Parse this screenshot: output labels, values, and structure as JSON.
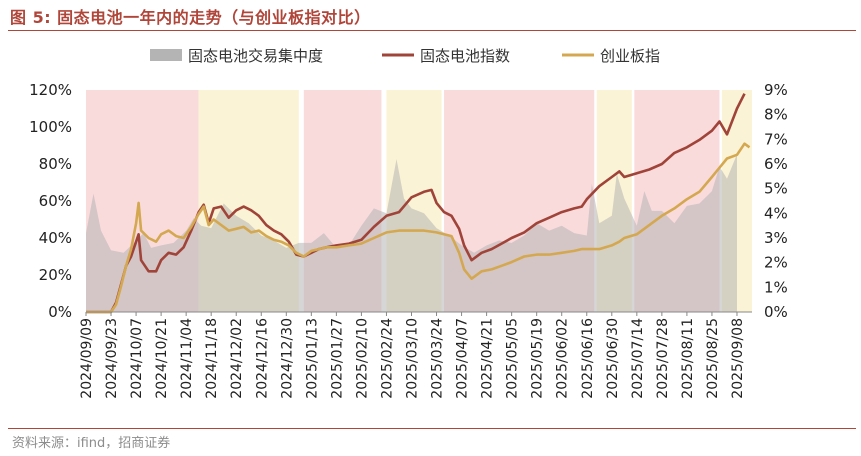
{
  "header": {
    "title": "图 5:  固态电池一年内的走势（与创业板指对比）"
  },
  "footer": {
    "source": "资料来源：ifind，招商证券"
  },
  "chart_data": {
    "type": "line",
    "title": "图 5:  固态电池一年内的走势（与创业板指对比）",
    "xlabel": "",
    "ylabel": "",
    "legend_placement": "top-center",
    "grid": false,
    "categories": [
      "2024/09/09",
      "2024/09/23",
      "2024/10/07",
      "2024/10/21",
      "2024/11/04",
      "2024/11/18",
      "2024/12/02",
      "2024/12/16",
      "2024/12/30",
      "2025/01/13",
      "2025/01/27",
      "2025/02/10",
      "2025/02/24",
      "2025/03/10",
      "2025/03/24",
      "2025/04/07",
      "2025/04/21",
      "2025/05/05",
      "2025/05/19",
      "2025/06/02",
      "2025/06/16",
      "2025/06/30",
      "2025/07/14",
      "2025/07/28",
      "2025/08/11",
      "2025/08/25",
      "2025/09/08"
    ],
    "left_axis": {
      "ylim": [
        0,
        120
      ],
      "ticks": [
        "0%",
        "20%",
        "40%",
        "60%",
        "80%",
        "100%",
        "120%"
      ]
    },
    "right_axis": {
      "ylim": [
        0,
        9
      ],
      "ticks": [
        "0%",
        "1%",
        "2%",
        "3%",
        "4%",
        "5%",
        "6%",
        "7%",
        "8%",
        "9%"
      ]
    },
    "series": [
      {
        "name": "固态电池交易集中度",
        "type": "area",
        "axis": "right",
        "color": "#b4b4b4",
        "points": [
          [
            0,
            3.2
          ],
          [
            0.3,
            4.8
          ],
          [
            0.6,
            3.3
          ],
          [
            1,
            2.5
          ],
          [
            1.5,
            2.4
          ],
          [
            2,
            2.9
          ],
          [
            2.3,
            3.2
          ],
          [
            2.6,
            2.6
          ],
          [
            3,
            2.7
          ],
          [
            3.5,
            2.8
          ],
          [
            4,
            3.3
          ],
          [
            4.3,
            3.8
          ],
          [
            4.6,
            3.5
          ],
          [
            5,
            3.4
          ],
          [
            5.5,
            4.4
          ],
          [
            6,
            3.9
          ],
          [
            6.5,
            3.6
          ],
          [
            7,
            3.1
          ],
          [
            7.5,
            2.9
          ],
          [
            8,
            2.6
          ],
          [
            8.5,
            2.8
          ],
          [
            9,
            2.8
          ],
          [
            9.5,
            3.2
          ],
          [
            10,
            2.6
          ],
          [
            10.5,
            2.7
          ],
          [
            11,
            3.5
          ],
          [
            11.5,
            4.2
          ],
          [
            12,
            4.0
          ],
          [
            12.4,
            6.2
          ],
          [
            12.7,
            4.6
          ],
          [
            13,
            4.2
          ],
          [
            13.5,
            4.0
          ],
          [
            14,
            3.4
          ],
          [
            14.5,
            3.1
          ],
          [
            15,
            2.7
          ],
          [
            15.5,
            2.4
          ],
          [
            16,
            2.7
          ],
          [
            16.5,
            2.9
          ],
          [
            17,
            2.8
          ],
          [
            17.5,
            3.1
          ],
          [
            18,
            3.6
          ],
          [
            18.5,
            3.3
          ],
          [
            19,
            3.5
          ],
          [
            19.5,
            3.2
          ],
          [
            20,
            3.1
          ],
          [
            20.2,
            5.2
          ],
          [
            20.5,
            3.6
          ],
          [
            21,
            3.9
          ],
          [
            21.2,
            5.6
          ],
          [
            21.5,
            4.6
          ],
          [
            22,
            3.5
          ],
          [
            22.3,
            4.9
          ],
          [
            22.6,
            4.1
          ],
          [
            23,
            4.1
          ],
          [
            23.5,
            3.6
          ],
          [
            24,
            4.3
          ],
          [
            24.5,
            4.4
          ],
          [
            25,
            4.9
          ],
          [
            25.3,
            5.9
          ],
          [
            25.6,
            5.4
          ],
          [
            26,
            6.4
          ]
        ]
      },
      {
        "name": "固态电池指数",
        "type": "line",
        "axis": "left",
        "color": "#a0443a",
        "points": [
          [
            0,
            0
          ],
          [
            0.5,
            0
          ],
          [
            1,
            0
          ],
          [
            1.2,
            5
          ],
          [
            1.4,
            15
          ],
          [
            1.6,
            25
          ],
          [
            1.8,
            30
          ],
          [
            2,
            38
          ],
          [
            2.1,
            42
          ],
          [
            2.2,
            28
          ],
          [
            2.5,
            22
          ],
          [
            2.8,
            22
          ],
          [
            3,
            28
          ],
          [
            3.3,
            32
          ],
          [
            3.6,
            31
          ],
          [
            3.9,
            35
          ],
          [
            4.2,
            44
          ],
          [
            4.5,
            54
          ],
          [
            4.7,
            58
          ],
          [
            4.9,
            48
          ],
          [
            5.1,
            56
          ],
          [
            5.4,
            57
          ],
          [
            5.7,
            51
          ],
          [
            6,
            55
          ],
          [
            6.3,
            57
          ],
          [
            6.6,
            55
          ],
          [
            6.9,
            52
          ],
          [
            7.2,
            47
          ],
          [
            7.5,
            44
          ],
          [
            7.8,
            42
          ],
          [
            8.1,
            38
          ],
          [
            8.4,
            31
          ],
          [
            8.7,
            30
          ],
          [
            9,
            32
          ],
          [
            9.3,
            34
          ],
          [
            9.6,
            35
          ],
          [
            10,
            36
          ],
          [
            10.5,
            37
          ],
          [
            11,
            39
          ],
          [
            11.5,
            46
          ],
          [
            12,
            52
          ],
          [
            12.5,
            54
          ],
          [
            13,
            62
          ],
          [
            13.5,
            65
          ],
          [
            13.8,
            66
          ],
          [
            14,
            59
          ],
          [
            14.3,
            54
          ],
          [
            14.6,
            52
          ],
          [
            14.9,
            45
          ],
          [
            15.1,
            36
          ],
          [
            15.4,
            28
          ],
          [
            15.8,
            32
          ],
          [
            16.2,
            34
          ],
          [
            16.6,
            37
          ],
          [
            17,
            40
          ],
          [
            17.5,
            43
          ],
          [
            18,
            48
          ],
          [
            18.5,
            51
          ],
          [
            19,
            54
          ],
          [
            19.5,
            56
          ],
          [
            19.8,
            57
          ],
          [
            20,
            61
          ],
          [
            20.5,
            68
          ],
          [
            21,
            73
          ],
          [
            21.3,
            76
          ],
          [
            21.5,
            73
          ],
          [
            22,
            75
          ],
          [
            22.5,
            77
          ],
          [
            23,
            80
          ],
          [
            23.5,
            86
          ],
          [
            24,
            89
          ],
          [
            24.5,
            93
          ],
          [
            25,
            98
          ],
          [
            25.3,
            103
          ],
          [
            25.6,
            96
          ],
          [
            26,
            110
          ],
          [
            26.3,
            118
          ]
        ]
      },
      {
        "name": "创业板指",
        "type": "line",
        "axis": "left",
        "color": "#d4a850",
        "points": [
          [
            0,
            0
          ],
          [
            0.5,
            0
          ],
          [
            1,
            0
          ],
          [
            1.2,
            4
          ],
          [
            1.4,
            14
          ],
          [
            1.6,
            25
          ],
          [
            1.8,
            34
          ],
          [
            2,
            48
          ],
          [
            2.1,
            59
          ],
          [
            2.2,
            44
          ],
          [
            2.5,
            40
          ],
          [
            2.8,
            38
          ],
          [
            3,
            42
          ],
          [
            3.3,
            44
          ],
          [
            3.6,
            41
          ],
          [
            3.9,
            40
          ],
          [
            4.2,
            46
          ],
          [
            4.5,
            53
          ],
          [
            4.7,
            57
          ],
          [
            4.9,
            47
          ],
          [
            5.1,
            50
          ],
          [
            5.4,
            47
          ],
          [
            5.7,
            44
          ],
          [
            6,
            45
          ],
          [
            6.3,
            46
          ],
          [
            6.6,
            43
          ],
          [
            6.9,
            44
          ],
          [
            7.2,
            41
          ],
          [
            7.5,
            39
          ],
          [
            7.8,
            38
          ],
          [
            8.1,
            36
          ],
          [
            8.4,
            32
          ],
          [
            8.7,
            30
          ],
          [
            9,
            33
          ],
          [
            9.3,
            34
          ],
          [
            9.6,
            35
          ],
          [
            10,
            35
          ],
          [
            10.5,
            36
          ],
          [
            11,
            37
          ],
          [
            11.5,
            40
          ],
          [
            12,
            43
          ],
          [
            12.5,
            44
          ],
          [
            13,
            44
          ],
          [
            13.5,
            44
          ],
          [
            14,
            43
          ],
          [
            14.3,
            42
          ],
          [
            14.6,
            41
          ],
          [
            14.9,
            32
          ],
          [
            15.1,
            23
          ],
          [
            15.4,
            18
          ],
          [
            15.8,
            22
          ],
          [
            16.2,
            23
          ],
          [
            16.6,
            25
          ],
          [
            17,
            27
          ],
          [
            17.5,
            30
          ],
          [
            18,
            31
          ],
          [
            18.5,
            31
          ],
          [
            19,
            32
          ],
          [
            19.5,
            33
          ],
          [
            19.8,
            34
          ],
          [
            20,
            34
          ],
          [
            20.5,
            34
          ],
          [
            21,
            36
          ],
          [
            21.3,
            38
          ],
          [
            21.5,
            40
          ],
          [
            22,
            42
          ],
          [
            22.5,
            47
          ],
          [
            23,
            52
          ],
          [
            23.5,
            56
          ],
          [
            24,
            61
          ],
          [
            24.5,
            65
          ],
          [
            25,
            73
          ],
          [
            25.3,
            78
          ],
          [
            25.6,
            83
          ],
          [
            26,
            85
          ],
          [
            26.3,
            91
          ],
          [
            26.5,
            89
          ]
        ]
      }
    ],
    "shaded_regions": [
      {
        "from": 0,
        "to": 4.5,
        "color": "#fadbdc"
      },
      {
        "from": 4.5,
        "to": 8.5,
        "color": "#fbf3d5"
      },
      {
        "from": 8.7,
        "to": 11.8,
        "color": "#fadbdc"
      },
      {
        "from": 12,
        "to": 14.2,
        "color": "#fbf3d5"
      },
      {
        "from": 14.3,
        "to": 20.3,
        "color": "#fadbdc"
      },
      {
        "from": 20.4,
        "to": 21.8,
        "color": "#fbf3d5"
      },
      {
        "from": 21.9,
        "to": 25.3,
        "color": "#fadbdc"
      },
      {
        "from": 25.4,
        "to": 26.6,
        "color": "#fbf3d5"
      }
    ]
  }
}
